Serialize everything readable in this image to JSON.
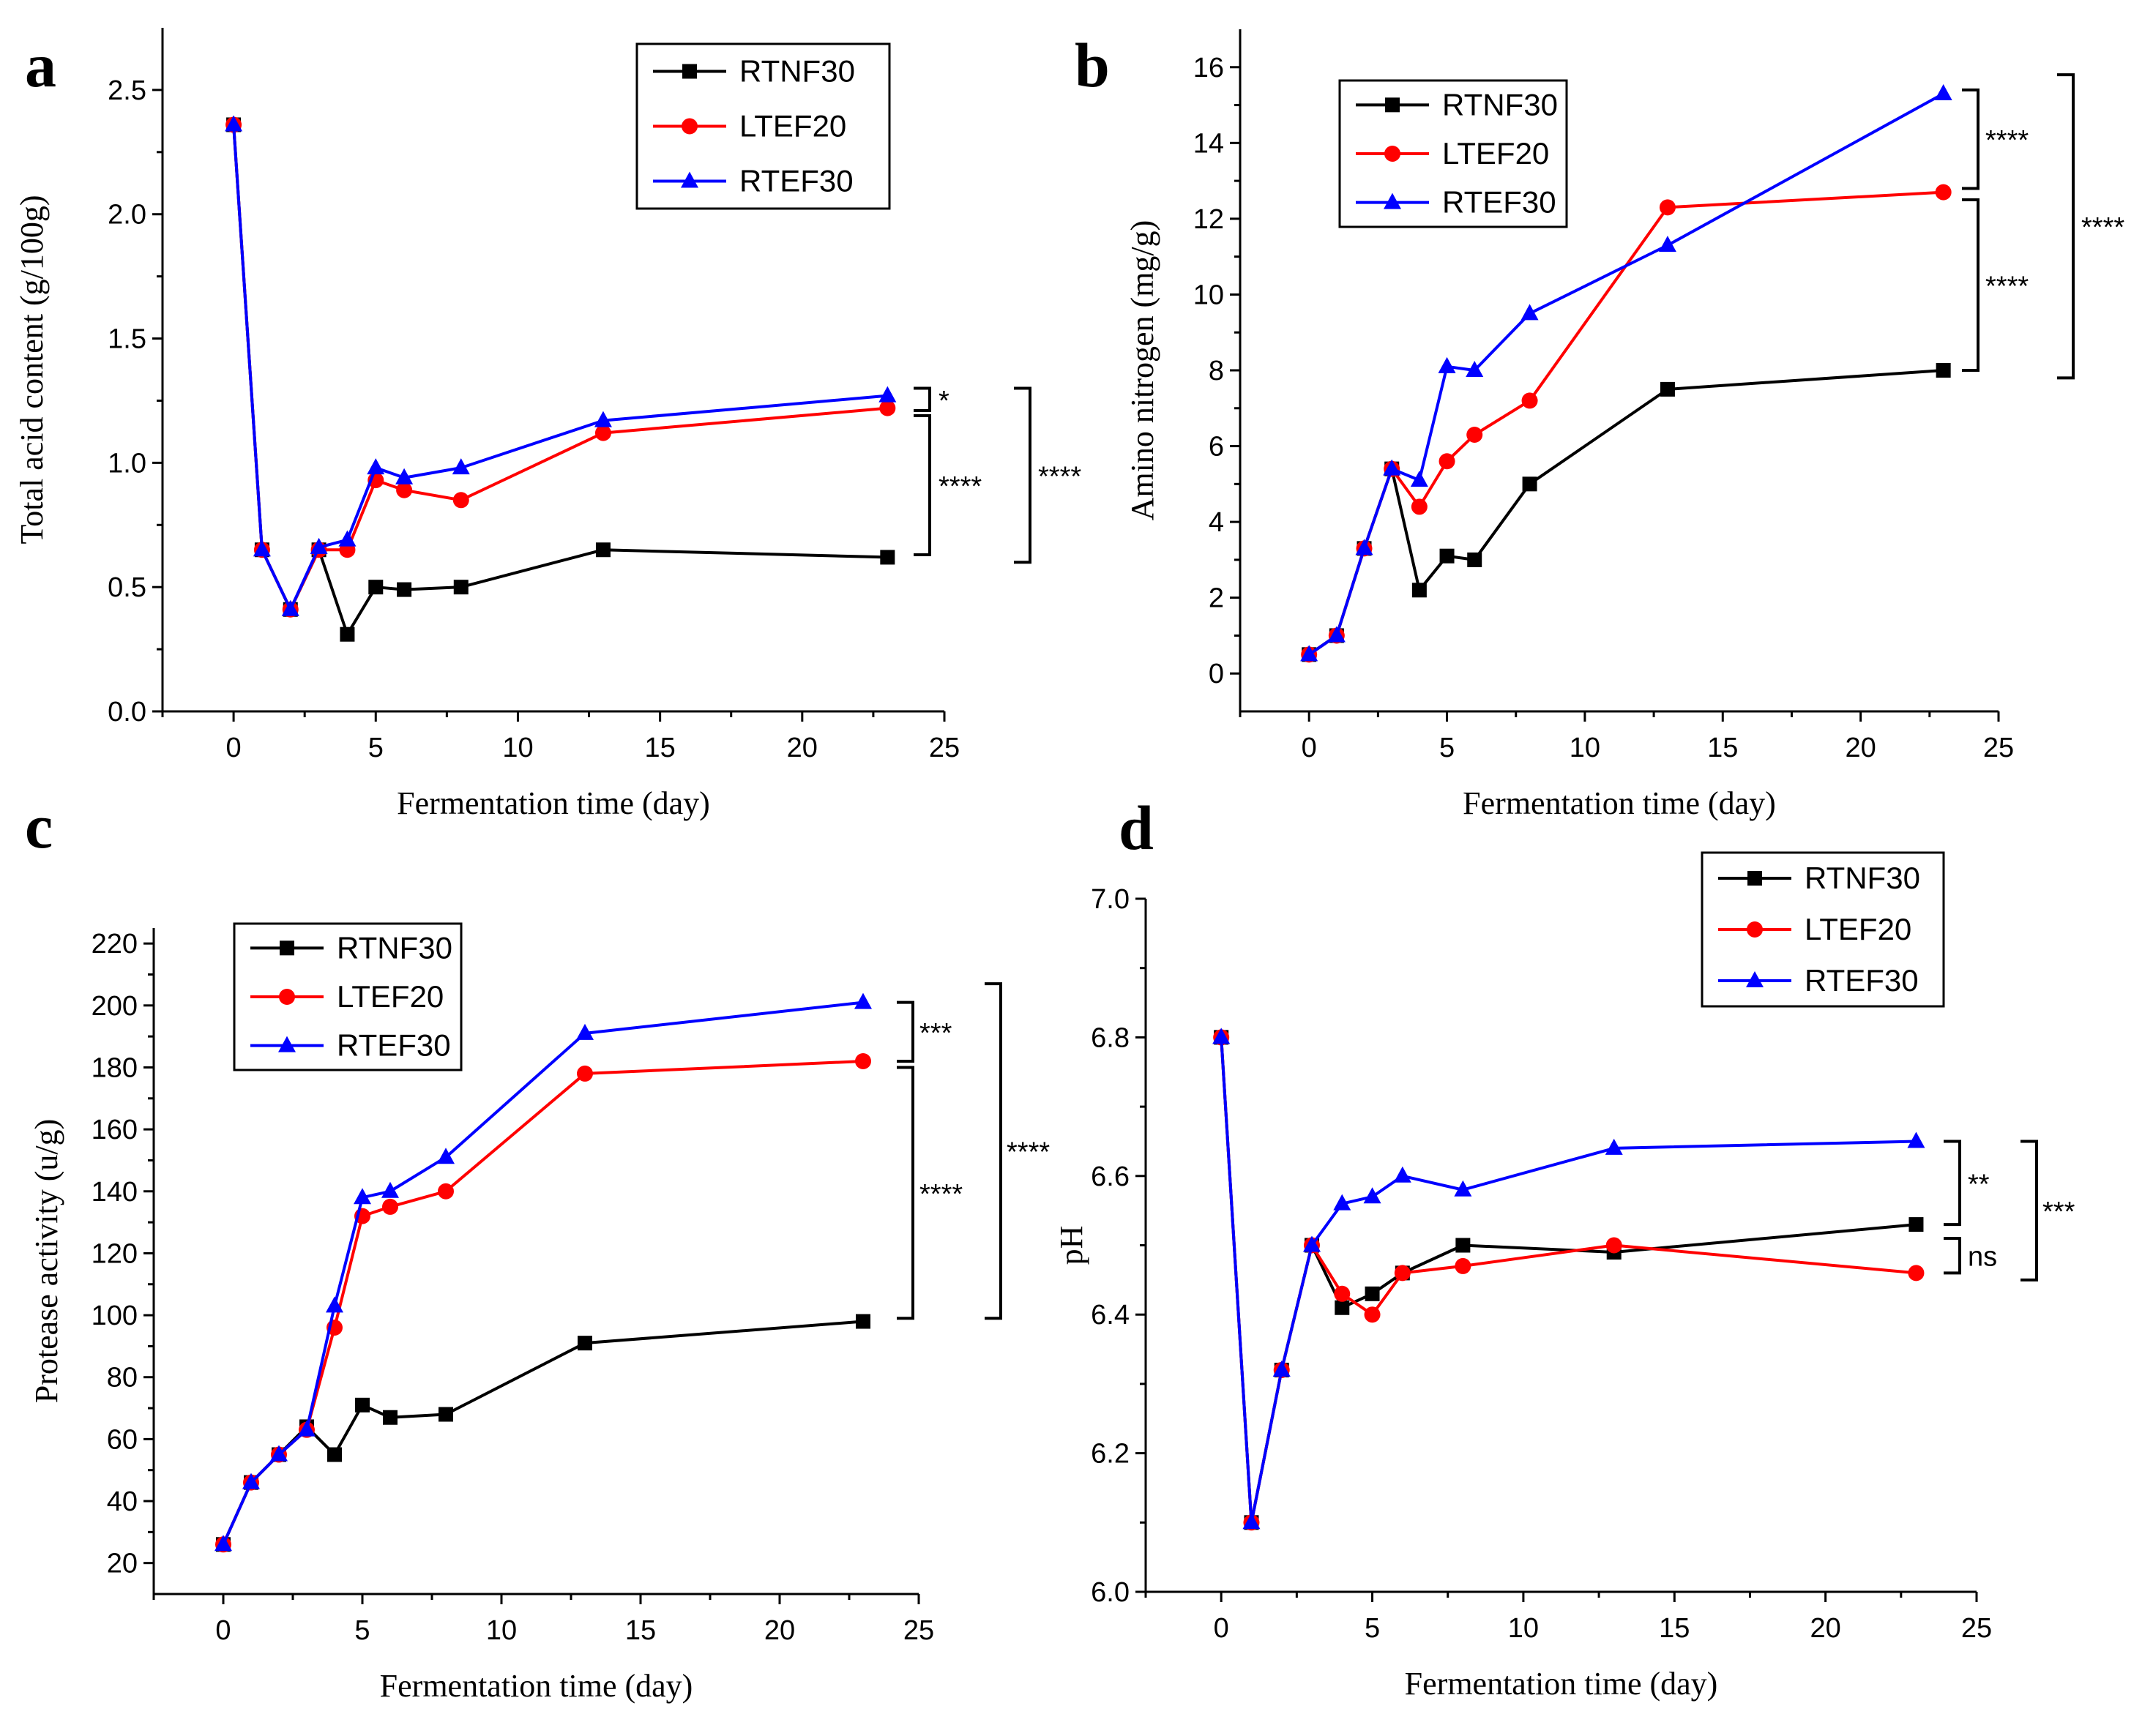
{
  "figure": {
    "colors": {
      "RTNF30": "#000000",
      "LTEF20": "#ff0000",
      "RTEF30": "#0000ff"
    },
    "series_names": [
      "RTNF30",
      "LTEF20",
      "RTEF30"
    ]
  },
  "chart_data": [
    {
      "panel": "a",
      "type": "line",
      "xlabel": "Fermentation time (day)",
      "ylabel": "Total acid content (g/100g)",
      "xlim": [
        -2.5,
        25
      ],
      "ylim": [
        0,
        2.75
      ],
      "xticks": [
        0,
        5,
        10,
        15,
        20,
        25
      ],
      "yticks": [
        0.0,
        0.5,
        1.0,
        1.5,
        2.0,
        2.5
      ],
      "yticklabels": [
        "0.0",
        "0.5",
        "1.0",
        "1.5",
        "2.0",
        "2.5"
      ],
      "legend": "top-right",
      "series": [
        {
          "name": "RTNF30",
          "x": [
            0,
            1,
            2,
            3,
            4,
            5,
            6,
            8,
            13,
            23
          ],
          "y": [
            2.36,
            0.65,
            0.41,
            0.65,
            0.31,
            0.5,
            0.49,
            0.5,
            0.65,
            0.62
          ]
        },
        {
          "name": "LTEF20",
          "x": [
            0,
            1,
            2,
            3,
            4,
            5,
            6,
            8,
            13,
            23
          ],
          "y": [
            2.36,
            0.65,
            0.41,
            0.65,
            0.65,
            0.93,
            0.89,
            0.85,
            1.12,
            1.22
          ]
        },
        {
          "name": "RTEF30",
          "x": [
            0,
            1,
            2,
            3,
            4,
            5,
            6,
            8,
            13,
            23
          ],
          "y": [
            2.36,
            0.65,
            0.41,
            0.66,
            0.69,
            0.98,
            0.94,
            0.98,
            1.17,
            1.27
          ]
        }
      ],
      "significance": [
        {
          "label": "*",
          "from": 1.3,
          "to": 1.21
        },
        {
          "label": "****",
          "from": 1.19,
          "to": 0.63
        },
        {
          "label": "****",
          "from": 1.3,
          "to": 0.6
        }
      ]
    },
    {
      "panel": "b",
      "type": "line",
      "xlabel": "Fermentation time (day)",
      "ylabel": "Amino nitrogen (mg/g)",
      "xlim": [
        -2.5,
        25
      ],
      "ylim": [
        -1,
        17
      ],
      "xticks": [
        0,
        5,
        10,
        15,
        20,
        25
      ],
      "yticks": [
        0,
        2,
        4,
        6,
        8,
        10,
        12,
        14,
        16
      ],
      "yticklabels": [
        "0",
        "2",
        "4",
        "6",
        "8",
        "10",
        "12",
        "14",
        "16"
      ],
      "legend": "top-left",
      "series": [
        {
          "name": "RTNF30",
          "x": [
            0,
            1,
            2,
            3,
            4,
            5,
            6,
            8,
            13,
            23
          ],
          "y": [
            0.5,
            1.0,
            3.3,
            5.4,
            2.2,
            3.1,
            3.0,
            5.0,
            7.5,
            8.0
          ]
        },
        {
          "name": "LTEF20",
          "x": [
            0,
            1,
            2,
            3,
            4,
            5,
            6,
            8,
            13,
            23
          ],
          "y": [
            0.5,
            1.0,
            3.3,
            5.4,
            4.4,
            5.6,
            6.3,
            7.2,
            12.3,
            12.7
          ]
        },
        {
          "name": "RTEF30",
          "x": [
            0,
            1,
            2,
            3,
            4,
            5,
            6,
            8,
            13,
            23
          ],
          "y": [
            0.5,
            1.0,
            3.3,
            5.4,
            5.1,
            8.1,
            8.0,
            9.5,
            11.3,
            15.3
          ]
        }
      ],
      "significance": [
        {
          "label": "****",
          "from": 15.4,
          "to": 12.8
        },
        {
          "label": "****",
          "from": 12.5,
          "to": 8.0
        },
        {
          "label": "****",
          "from": 15.8,
          "to": 7.8
        }
      ]
    },
    {
      "panel": "c",
      "type": "line",
      "xlabel": "Fermentation time (day)",
      "ylabel": "Protease activity (u/g)",
      "xlim": [
        -2.5,
        25
      ],
      "ylim": [
        10,
        225
      ],
      "xticks": [
        0,
        5,
        10,
        15,
        20,
        25
      ],
      "yticks": [
        20,
        40,
        60,
        80,
        100,
        120,
        140,
        160,
        180,
        200,
        220
      ],
      "yticklabels": [
        "20",
        "40",
        "60",
        "80",
        "100",
        "120",
        "140",
        "160",
        "180",
        "200",
        "220"
      ],
      "legend": "top-left",
      "series": [
        {
          "name": "RTNF30",
          "x": [
            0,
            1,
            2,
            3,
            4,
            5,
            6,
            8,
            13,
            23
          ],
          "y": [
            26,
            46,
            55,
            64,
            55,
            71,
            67,
            68,
            91,
            98
          ]
        },
        {
          "name": "LTEF20",
          "x": [
            0,
            1,
            2,
            3,
            4,
            5,
            6,
            8,
            13,
            23
          ],
          "y": [
            26,
            46,
            55,
            63,
            96,
            132,
            135,
            140,
            178,
            182
          ]
        },
        {
          "name": "RTEF30",
          "x": [
            0,
            1,
            2,
            3,
            4,
            5,
            6,
            8,
            13,
            23
          ],
          "y": [
            26,
            46,
            55,
            63,
            103,
            138,
            140,
            151,
            191,
            201
          ]
        }
      ],
      "significance": [
        {
          "label": "***",
          "from": 201,
          "to": 182
        },
        {
          "label": "****",
          "from": 180,
          "to": 99
        },
        {
          "label": "****",
          "from": 207,
          "to": 99
        }
      ]
    },
    {
      "panel": "d",
      "type": "line",
      "xlabel": "Fermentation time (day)",
      "ylabel": "pH",
      "xlim": [
        -2.5,
        25
      ],
      "ylim": [
        6.0,
        7.0
      ],
      "xticks": [
        0,
        5,
        10,
        15,
        20,
        25
      ],
      "yticks": [
        6.0,
        6.2,
        6.4,
        6.6,
        6.8,
        7.0
      ],
      "yticklabels": [
        "6.0",
        "6.2",
        "6.4",
        "6.6",
        "6.8",
        "7.0"
      ],
      "legend": "top-right",
      "series": [
        {
          "name": "RTNF30",
          "x": [
            0,
            1,
            2,
            3,
            4,
            5,
            6,
            8,
            13,
            23
          ],
          "y": [
            6.8,
            6.1,
            6.32,
            6.5,
            6.41,
            6.43,
            6.46,
            6.5,
            6.49,
            6.53
          ]
        },
        {
          "name": "LTEF20",
          "x": [
            0,
            1,
            2,
            3,
            4,
            5,
            6,
            8,
            13,
            23
          ],
          "y": [
            6.8,
            6.1,
            6.32,
            6.5,
            6.43,
            6.4,
            6.46,
            6.47,
            6.5,
            6.46
          ]
        },
        {
          "name": "RTEF30",
          "x": [
            0,
            1,
            2,
            3,
            4,
            5,
            6,
            8,
            13,
            23
          ],
          "y": [
            6.8,
            6.1,
            6.32,
            6.5,
            6.56,
            6.57,
            6.6,
            6.58,
            6.64,
            6.65
          ]
        }
      ],
      "significance": [
        {
          "label": "**",
          "from": 6.65,
          "to": 6.53
        },
        {
          "label": "ns",
          "from": 6.51,
          "to": 6.46
        },
        {
          "label": "***",
          "from": 6.65,
          "to": 6.45
        }
      ]
    }
  ]
}
